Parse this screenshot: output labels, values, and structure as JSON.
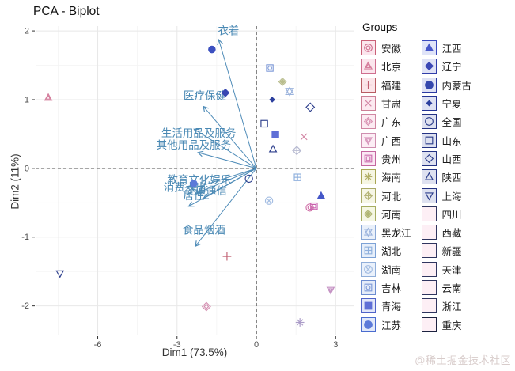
{
  "page": {
    "watermark": "@稀土掘金技术社区"
  },
  "chart_data": {
    "type": "scatter",
    "subtype": "pca-biplot",
    "title": "PCA - Biplot",
    "xlabel": "Dim1 (73.5%)",
    "ylabel": "Dim2 (11%)",
    "xlim": [
      -8.35,
      3.68
    ],
    "ylim": [
      -2.43,
      2.07
    ],
    "x_ticks": [
      -6,
      -3,
      0,
      3
    ],
    "y_ticks": [
      -2,
      -1,
      0,
      1,
      2
    ],
    "grid": true,
    "zero_lines": "dashed",
    "legend_position": "right",
    "arrow_color": "#4f8cb8",
    "arrow_label_color": "#4a89b4",
    "arrows": [
      {
        "key": "clothing",
        "label": "衣着",
        "tip": [
          -1.42,
          1.87
        ],
        "label_pos": [
          -1.05,
          2.0
        ]
      },
      {
        "key": "healthcare",
        "label": "医疗保健",
        "tip": [
          -2.0,
          0.9
        ],
        "label_pos": [
          -1.95,
          1.06
        ]
      },
      {
        "key": "household-goods",
        "label": "生活用品及服务",
        "tip": [
          -2.35,
          0.57
        ],
        "label_pos": [
          -2.18,
          0.51
        ]
      },
      {
        "key": "other-goods",
        "label": "其他用品及服务",
        "tip": [
          -2.2,
          0.23
        ],
        "label_pos": [
          -2.37,
          0.34
        ]
      },
      {
        "key": "education",
        "label": "教育文化娱乐",
        "tip": [
          -2.45,
          -0.3
        ],
        "label_pos": [
          -2.16,
          -0.17
        ]
      },
      {
        "key": "consumption",
        "label": "消费支出",
        "tip": [
          -2.25,
          -0.36
        ],
        "label_pos": [
          -2.7,
          -0.28
        ]
      },
      {
        "key": "transport",
        "label": "交通通信",
        "tip": [
          -2.0,
          -0.44
        ],
        "label_pos": [
          -1.92,
          -0.33
        ]
      },
      {
        "key": "housing",
        "label": "居住",
        "tip": [
          -2.55,
          -0.55
        ],
        "label_pos": [
          -2.37,
          -0.4
        ]
      },
      {
        "key": "food",
        "label": "食品烟酒",
        "tip": [
          -2.3,
          -1.13
        ],
        "label_pos": [
          -1.98,
          -0.9
        ]
      }
    ],
    "points": [
      {
        "key": "beijing",
        "label": "北京",
        "x": -7.87,
        "y": 1.03,
        "shape": "triangle_inner",
        "color": "#d5809e"
      },
      {
        "key": "shanghai",
        "label": "上海",
        "x": -7.43,
        "y": -1.53,
        "shape": "tri_down_open",
        "color": "#2c3e8c"
      },
      {
        "key": "neimenggu",
        "label": "内蒙古",
        "x": -1.68,
        "y": 1.73,
        "shape": "circle_fill",
        "color": "#3c50c0",
        "size": 4.2
      },
      {
        "key": "liaoning",
        "label": "辽宁",
        "x": -1.17,
        "y": 1.1,
        "shape": "diamond_fill",
        "color": "#3847b2"
      },
      {
        "key": "jiangsu",
        "label": "江苏",
        "x": -2.37,
        "y": -0.22,
        "shape": "circle_fill",
        "color": "#5c7ad9",
        "size": 4.2
      },
      {
        "key": "quanguo",
        "label": "全国",
        "x": -0.28,
        "y": -0.15,
        "shape": "circle_open",
        "color": "#2c3e8c"
      },
      {
        "key": "jilin",
        "label": "吉林",
        "x": 0.51,
        "y": 1.46,
        "shape": "square_circle",
        "color": "#7e9ad8"
      },
      {
        "key": "henan",
        "label": "河南",
        "x": 0.99,
        "y": 1.26,
        "shape": "diamond_dot",
        "color": "#b9bd8d"
      },
      {
        "key": "heilongjiang",
        "label": "黑龙江",
        "x": 1.26,
        "y": 1.12,
        "shape": "star6",
        "color": "#9cb4dd",
        "size": 5.2
      },
      {
        "key": "ningxia",
        "label": "宁夏",
        "x": 0.6,
        "y": 1.0,
        "shape": "diamond_fill",
        "color": "#2c3f9e",
        "size": 3.0
      },
      {
        "key": "shanxi",
        "label": "山西",
        "x": 2.04,
        "y": 0.89,
        "shape": "diamond_open",
        "color": "#2c3e8c",
        "size": 5.2
      },
      {
        "key": "shandong",
        "label": "山东",
        "x": 0.3,
        "y": 0.65,
        "shape": "square_open",
        "color": "#2c3e8c"
      },
      {
        "key": "qinghai",
        "label": "青海",
        "x": 0.72,
        "y": 0.49,
        "shape": "square_fill",
        "color": "#5f6fd6"
      },
      {
        "key": "gansu",
        "label": "甘肃",
        "x": 1.8,
        "y": 0.46,
        "shape": "cross",
        "color": "#d387a5",
        "size": 5.0
      },
      {
        "key": "shaanxi",
        "label": "陕西",
        "x": 0.63,
        "y": 0.28,
        "shape": "triangle_open",
        "color": "#2c3e8c"
      },
      {
        "key": "hebei",
        "label": "河北",
        "x": 1.53,
        "y": 0.26,
        "shape": "diamond_plus",
        "color": "#b6b9d0",
        "size": 5.2
      },
      {
        "key": "hubei",
        "label": "湖北",
        "x": 1.56,
        "y": -0.13,
        "shape": "square_plus",
        "color": "#8fb0dd"
      },
      {
        "key": "hunan",
        "label": "湖南",
        "x": 0.48,
        "y": -0.47,
        "shape": "circle_cross",
        "color": "#a2bce2"
      },
      {
        "key": "jiangxi",
        "label": "江西",
        "x": 2.45,
        "y": -0.4,
        "shape": "triangle_fill",
        "color": "#4557c8"
      },
      {
        "key": "anhui",
        "label": "安徽",
        "x": 2.02,
        "y": -0.57,
        "shape": "circle_double",
        "color": "#d070a8"
      },
      {
        "key": "guizhou",
        "label": "贵州",
        "x": 2.18,
        "y": -0.55,
        "shape": "square_inner",
        "color": "#c85fae"
      },
      {
        "key": "fujian",
        "label": "福建",
        "x": -1.11,
        "y": -1.28,
        "shape": "plus",
        "color": "#c05f70",
        "size": 5.4
      },
      {
        "key": "guangdong",
        "label": "广东",
        "x": -1.89,
        "y": -2.01,
        "shape": "diamond_inner",
        "color": "#d590b2",
        "size": 5.2
      },
      {
        "key": "guangxi",
        "label": "广西",
        "x": 2.81,
        "y": -1.77,
        "shape": "tri_down_inner",
        "color": "#c38fc2"
      },
      {
        "key": "hainan",
        "label": "海南",
        "x": 1.65,
        "y": -2.24,
        "shape": "asterisk",
        "color": "#ab9cc8",
        "size": 5.4
      }
    ]
  },
  "legend": {
    "title": "Groups",
    "columns": [
      {
        "items": [
          {
            "key": "anhui",
            "label": "安徽",
            "shape": "circle_double",
            "color": "#cf6f8f",
            "bg": "#fbe6ed",
            "border": "#c96077"
          },
          {
            "key": "beijing",
            "label": "北京",
            "shape": "triangle_inner",
            "color": "#d67f9d",
            "bg": "#fbe6ed",
            "border": "#cf6f8f"
          },
          {
            "key": "fujian",
            "label": "福建",
            "shape": "plus",
            "color": "#c05f70",
            "bg": "#fbe5e9",
            "border": "#b85c63"
          },
          {
            "key": "gansu",
            "label": "甘肃",
            "shape": "cross",
            "color": "#d387a5",
            "bg": "#fce9f0",
            "border": "#cc7f96"
          },
          {
            "key": "guangdong",
            "label": "广东",
            "shape": "diamond_inner",
            "color": "#d88fb0",
            "bg": "#fcebf2",
            "border": "#d087a3"
          },
          {
            "key": "guangxi",
            "label": "广西",
            "shape": "tri_down_inner",
            "color": "#d898bd",
            "bg": "#fceef5",
            "border": "#cf8fb0"
          },
          {
            "key": "guizhou",
            "label": "贵州",
            "shape": "square_inner",
            "color": "#cc6fae",
            "bg": "#fbe8f4",
            "border": "#c467a0"
          },
          {
            "key": "hainan",
            "label": "海南",
            "shape": "asterisk",
            "color": "#b3b069",
            "bg": "#f6f6e3",
            "border": "#a9a657"
          },
          {
            "key": "hebei",
            "label": "河北",
            "shape": "diamond_plus",
            "color": "#b5b478",
            "bg": "#f6f6e6",
            "border": "#abab68"
          },
          {
            "key": "henan",
            "label": "河南",
            "shape": "diamond_dot",
            "color": "#b0b673",
            "bg": "#f5f7e4",
            "border": "#a6ad62"
          },
          {
            "key": "heilongjiang",
            "label": "黑龙江",
            "shape": "star6",
            "color": "#9cb4dd",
            "bg": "#e9f0fa",
            "border": "#8aa8d6"
          },
          {
            "key": "hubei",
            "label": "湖北",
            "shape": "square_plus",
            "color": "#8fb0dd",
            "bg": "#e7effa",
            "border": "#7da2d6"
          },
          {
            "key": "hunan",
            "label": "湖南",
            "shape": "circle_cross",
            "color": "#a2bce2",
            "bg": "#eaf1fb",
            "border": "#90aed9"
          },
          {
            "key": "jilin",
            "label": "吉林",
            "shape": "square_circle",
            "color": "#7e9ad8",
            "bg": "#e5ecf9",
            "border": "#6c8cd0"
          },
          {
            "key": "qinghai",
            "label": "青海",
            "shape": "square_fill",
            "color": "#5f6fd6",
            "bg": "#e2e7f9",
            "border": "#5063c8"
          },
          {
            "key": "jiangsu",
            "label": "江苏",
            "shape": "circle_fill",
            "color": "#5c7ad9",
            "bg": "#e2e9f9",
            "border": "#4a6ccf"
          }
        ]
      },
      {
        "items": [
          {
            "key": "jiangxi",
            "label": "江西",
            "shape": "triangle_fill",
            "color": "#4757c9",
            "bg": "#e0e4f8",
            "border": "#3a49bd"
          },
          {
            "key": "liaoning",
            "label": "辽宁",
            "shape": "diamond_fill",
            "color": "#3a47b5",
            "bg": "#dfe2f6",
            "border": "#303daa"
          },
          {
            "key": "neimenggu",
            "label": "内蒙古",
            "shape": "circle_fill",
            "color": "#3447ad",
            "bg": "#dfe2f5",
            "border": "#2b3aa2"
          },
          {
            "key": "ningxia",
            "label": "宁夏",
            "shape": "diamond_fill",
            "color": "#2c3f9e",
            "bg": "#dee1f3",
            "border": "#253495",
            "symsize": 3.2
          },
          {
            "key": "quanguo",
            "label": "全国",
            "shape": "circle_open",
            "color": "#2c3e8c",
            "bg": "#dee1f0",
            "border": "#253384"
          },
          {
            "key": "shandong",
            "label": "山东",
            "shape": "square_open",
            "color": "#2c3e8c",
            "bg": "#dee1f0",
            "border": "#253384"
          },
          {
            "key": "shanxi",
            "label": "山西",
            "shape": "diamond_open",
            "color": "#2c3e8c",
            "bg": "#dee1f0",
            "border": "#253384"
          },
          {
            "key": "shaanxi",
            "label": "陕西",
            "shape": "triangle_open",
            "color": "#2c3e8c",
            "bg": "#dee1f0",
            "border": "#253384"
          },
          {
            "key": "shanghai",
            "label": "上海",
            "shape": "tri_down_open",
            "color": "#2c3e8c",
            "bg": "#dee1f0",
            "border": "#253384"
          },
          {
            "key": "sichuan",
            "label": "四川",
            "shape": "none",
            "color": "",
            "bg": "#fdeff5",
            "border": "#2f355f"
          },
          {
            "key": "xizang",
            "label": "西藏",
            "shape": "none",
            "color": "",
            "bg": "#fdeff5",
            "border": "#2f355f"
          },
          {
            "key": "xinjiang",
            "label": "新疆",
            "shape": "none",
            "color": "",
            "bg": "#fdeff5",
            "border": "#2f355f"
          },
          {
            "key": "tianjin",
            "label": "天津",
            "shape": "none",
            "color": "",
            "bg": "#fdeff5",
            "border": "#2f355f"
          },
          {
            "key": "yunnan",
            "label": "云南",
            "shape": "none",
            "color": "",
            "bg": "#fdeff5",
            "border": "#2f355f"
          },
          {
            "key": "zhejiang",
            "label": "浙江",
            "shape": "none",
            "color": "",
            "bg": "#fdeff5",
            "border": "#2f355f"
          },
          {
            "key": "chongqing",
            "label": "重庆",
            "shape": "none",
            "color": "",
            "bg": "#fdeff5",
            "border": "#1c2240"
          }
        ]
      }
    ]
  }
}
